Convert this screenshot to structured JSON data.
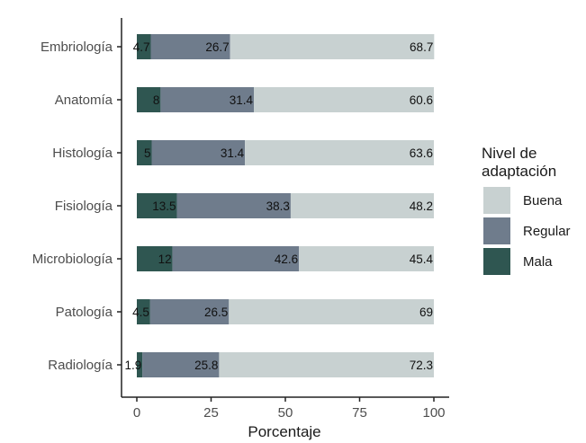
{
  "chart_data": {
    "type": "bar",
    "orientation": "horizontal",
    "stacked": true,
    "categories": [
      "Embriología",
      "Anatomía",
      "Histología",
      "Fisiología",
      "Microbiología",
      "Patología",
      "Radiología"
    ],
    "series": [
      {
        "name": "Mala",
        "color": "#2f5651",
        "values": [
          4.7,
          8,
          5,
          13.5,
          12,
          4.5,
          1.9
        ],
        "labels": [
          "4.7",
          "8",
          "5",
          "13.5",
          "12",
          "4.5",
          "1.9"
        ]
      },
      {
        "name": "Regular",
        "color": "#6f7c8c",
        "values": [
          26.7,
          31.4,
          31.4,
          38.3,
          42.6,
          26.5,
          25.8
        ],
        "labels": [
          "26.7",
          "31.4",
          "31.4",
          "38.3",
          "42.6",
          "26.5",
          "25.8"
        ]
      },
      {
        "name": "Buena",
        "color": "#c8d1d1",
        "values": [
          68.7,
          60.6,
          63.6,
          48.2,
          45.4,
          69,
          72.3
        ],
        "labels": [
          "68.7",
          "60.6",
          "63.6",
          "48.2",
          "45.4",
          "69",
          "72.3"
        ]
      }
    ],
    "xlabel": "Porcentaje",
    "ylabel": "",
    "xlim": [
      0,
      100
    ],
    "xticks": [
      "0",
      "25",
      "50",
      "75",
      "100"
    ],
    "legend": {
      "title_lines": [
        "Nivel de",
        "adaptación"
      ],
      "entries": [
        "Buena",
        "Regular",
        "Mala"
      ],
      "placement": "right"
    },
    "grid": false
  }
}
